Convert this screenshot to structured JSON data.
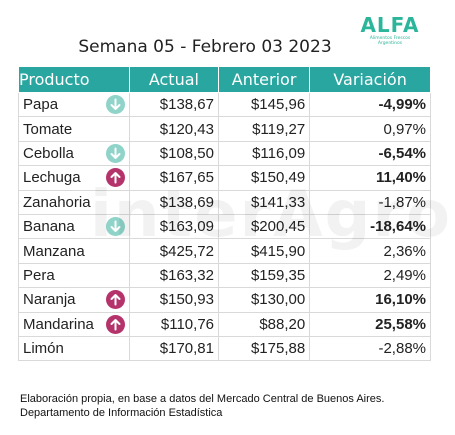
{
  "title": "Semana 05 - Febrero 03 2023",
  "logo": {
    "word": "ALFA",
    "subtitle_line1": "Alimentos Frescos",
    "subtitle_line2": "Argentinos"
  },
  "watermark": "interAgros",
  "table": {
    "headers": {
      "product": "Producto",
      "actual": "Actual",
      "previous": "Anterior",
      "variation": "Variación"
    },
    "rows": [
      {
        "product": "Papa",
        "actual": "$138,67",
        "previous": "$145,96",
        "variation": "-4,99%",
        "trend": "down",
        "bold": true
      },
      {
        "product": "Tomate",
        "actual": "$120,43",
        "previous": "$119,27",
        "variation": "0,97%",
        "trend": "none",
        "bold": false
      },
      {
        "product": "Cebolla",
        "actual": "$108,50",
        "previous": "$116,09",
        "variation": "-6,54%",
        "trend": "down",
        "bold": true
      },
      {
        "product": "Lechuga",
        "actual": "$167,65",
        "previous": "$150,49",
        "variation": "11,40%",
        "trend": "up",
        "bold": true
      },
      {
        "product": "Zanahoria",
        "actual": "$138,69",
        "previous": "$141,33",
        "variation": "-1,87%",
        "trend": "none",
        "bold": false
      },
      {
        "product": "Banana",
        "actual": "$163,09",
        "previous": "$200,45",
        "variation": "-18,64%",
        "trend": "down",
        "bold": true
      },
      {
        "product": "Manzana",
        "actual": "$425,72",
        "previous": "$415,90",
        "variation": "2,36%",
        "trend": "none",
        "bold": false
      },
      {
        "product": "Pera",
        "actual": "$163,32",
        "previous": "$159,35",
        "variation": "2,49%",
        "trend": "none",
        "bold": false
      },
      {
        "product": "Naranja",
        "actual": "$150,93",
        "previous": "$130,00",
        "variation": "16,10%",
        "trend": "up",
        "bold": true
      },
      {
        "product": "Mandarina",
        "actual": "$110,76",
        "previous": "$88,20",
        "variation": "25,58%",
        "trend": "up",
        "bold": true
      },
      {
        "product": "Limón",
        "actual": "$170,81",
        "previous": "$175,88",
        "variation": "-2,88%",
        "trend": "none",
        "bold": false
      }
    ]
  },
  "footer": {
    "line1": "Elaboración propia, en base a datos del Mercado Central de Buenos Aires.",
    "line2": "Departamento de Información Estadística"
  },
  "colors": {
    "header_bg": "#2aa6a0",
    "arrow_down": "#8fd3c9",
    "arrow_up": "#b5336b",
    "logo": "#2bb59a"
  },
  "icons": {
    "down": "arrow-down-circle-icon",
    "up": "arrow-up-circle-icon"
  }
}
